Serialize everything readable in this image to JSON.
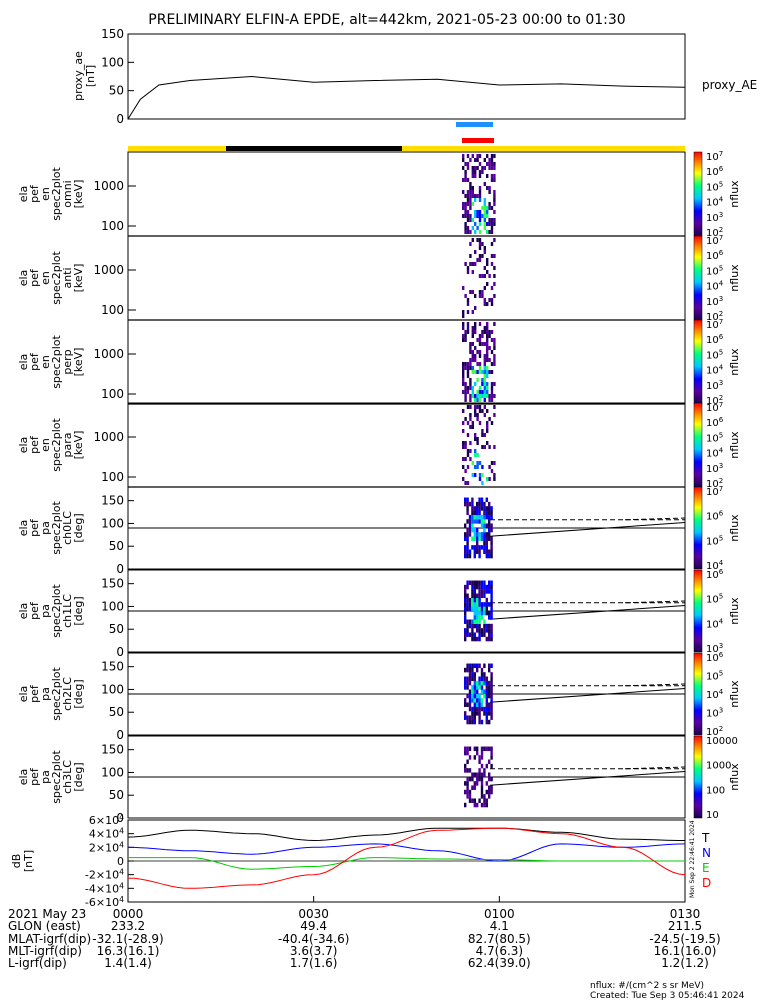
{
  "title": "PRELIMINARY ELFIN-A EPDE, alt=442km, 2021-05-23 00:00 to 01:30",
  "top_panel": {
    "ylabel": "proxy_ae",
    "units": "[nT]",
    "series_name": "proxy_AE",
    "yticks": [
      "150",
      "100",
      "50",
      "0"
    ]
  },
  "spec_panels": [
    {
      "label_lines": [
        "ela",
        "pef",
        "en",
        "spec2plot",
        "omni"
      ],
      "units": "[keV]",
      "yticks": [
        "1000",
        "100"
      ],
      "cb_ticks": [
        "10^7",
        "10^6",
        "10^5",
        "10^4",
        "10^3",
        "10^2"
      ],
      "cb_label": "nflux"
    },
    {
      "label_lines": [
        "ela",
        "pef",
        "en",
        "spec2plot",
        "anti"
      ],
      "units": "[keV]",
      "yticks": [
        "1000",
        "100"
      ],
      "cb_ticks": [
        "10^7",
        "10^6",
        "10^5",
        "10^4",
        "10^3",
        "10^2"
      ],
      "cb_label": "nflux"
    },
    {
      "label_lines": [
        "ela",
        "pef",
        "en",
        "spec2plot",
        "perp"
      ],
      "units": "[keV]",
      "yticks": [
        "1000",
        "100"
      ],
      "cb_ticks": [
        "10^7",
        "10^6",
        "10^5",
        "10^4",
        "10^3",
        "10^2"
      ],
      "cb_label": "nflux"
    },
    {
      "label_lines": [
        "ela",
        "pef",
        "en",
        "spec2plot",
        "para"
      ],
      "units": "[keV]",
      "yticks": [
        "1000",
        "100"
      ],
      "cb_ticks": [
        "10^7",
        "10^6",
        "10^5",
        "10^4",
        "10^3",
        "10^2"
      ],
      "cb_label": "nflux"
    }
  ],
  "pa_panels": [
    {
      "label_lines": [
        "ela",
        "pef",
        "pa",
        "spec2plot",
        "ch0LC"
      ],
      "units": "[deg]",
      "yticks": [
        "150",
        "100",
        "50",
        "0"
      ],
      "cb_ticks": [
        "10^7",
        "10^6",
        "10^5",
        "10^4"
      ],
      "cb_label": "nflux"
    },
    {
      "label_lines": [
        "ela",
        "pef",
        "pa",
        "spec2plot",
        "ch1LC"
      ],
      "units": "[deg]",
      "yticks": [
        "150",
        "100",
        "50",
        "0"
      ],
      "cb_ticks": [
        "10^6",
        "10^5",
        "10^4",
        "10^3"
      ],
      "cb_label": "nflux"
    },
    {
      "label_lines": [
        "ela",
        "pef",
        "pa",
        "spec2plot",
        "ch2LC"
      ],
      "units": "[deg]",
      "yticks": [
        "150",
        "100",
        "50",
        "0"
      ],
      "cb_ticks": [
        "10^6",
        "10^5",
        "10^4",
        "10^3",
        "10^2"
      ],
      "cb_label": "nflux"
    },
    {
      "label_lines": [
        "ela",
        "pef",
        "pa",
        "spec2plot",
        "ch3LC"
      ],
      "units": "[deg]",
      "yticks": [
        "150",
        "100",
        "50",
        "0"
      ],
      "cb_ticks": [
        "10000",
        "1000",
        "100",
        "10"
      ],
      "cb_label": "nflux"
    }
  ],
  "bfield_panel": {
    "ylabel": "dB",
    "units": "[nT]",
    "yticks": [
      "6×10^4",
      "4×10^4",
      "2×10^4",
      "0",
      "-2×10^4",
      "-4×10^4",
      "-6×10^4"
    ],
    "legend": [
      {
        "name": "T",
        "color": "#000000"
      },
      {
        "name": "N",
        "color": "#0000ff"
      },
      {
        "name": "E",
        "color": "#00cc00"
      },
      {
        "name": "D",
        "color": "#ff0000"
      }
    ],
    "side_text": "Mon Sep  2 22:46:41 2024"
  },
  "colors": {
    "sun_bar": "#ffdd00",
    "shadow_bar": "#000000",
    "science_blue": "#1e90ff",
    "science_red": "#ff0000"
  },
  "orbit_table": {
    "row_labels": [
      "2021 May 23",
      "GLON (east)",
      "MLAT-igrf(dip)",
      "MLT-igrf(dip)",
      "L-igrf(dip)"
    ],
    "columns": [
      {
        "time": "0000",
        "values": [
          "233.2",
          "-32.1(-28.9)",
          "16.3(16.1)",
          "1.4(1.4)"
        ]
      },
      {
        "time": "0030",
        "values": [
          "49.4",
          "-40.4(-34.6)",
          "3.6(3.7)",
          "1.7(1.6)"
        ]
      },
      {
        "time": "0100",
        "values": [
          "4.1",
          "82.7(80.5)",
          "4.7(6.3)",
          "62.4(39.0)"
        ]
      },
      {
        "time": "0130",
        "values": [
          "211.5",
          "-24.5(-19.5)",
          "16.1(16.0)",
          "1.2(1.2)"
        ]
      }
    ]
  },
  "footer": {
    "units_note": "nflux: #/(cm^2 s sr MeV)",
    "created": "Created: Tue Sep  3 05:46:41 2024"
  },
  "chart_data": {
    "type": "line",
    "x_range": [
      "00:00",
      "01:30"
    ],
    "proxy_ae": {
      "x_minutes": [
        0,
        2,
        5,
        10,
        20,
        30,
        40,
        50,
        60,
        70,
        80,
        90
      ],
      "values": [
        0,
        35,
        60,
        68,
        75,
        65,
        68,
        70,
        60,
        62,
        58,
        56
      ],
      "ylim": [
        0,
        150
      ]
    },
    "b_field": {
      "x_minutes": [
        0,
        10,
        20,
        30,
        40,
        50,
        60,
        70,
        80,
        90
      ],
      "series": [
        {
          "name": "T",
          "values": [
            35000,
            45000,
            40000,
            30000,
            38000,
            48000,
            48000,
            42000,
            32000,
            30000
          ]
        },
        {
          "name": "N",
          "values": [
            20000,
            15000,
            10000,
            20000,
            25000,
            15000,
            0,
            25000,
            20000,
            25000
          ]
        },
        {
          "name": "E",
          "values": [
            5000,
            5000,
            -12000,
            -8000,
            5000,
            3000,
            2000,
            0,
            0,
            0
          ]
        },
        {
          "name": "D",
          "values": [
            -25000,
            -40000,
            -35000,
            -20000,
            20000,
            45000,
            48000,
            40000,
            20000,
            -20000
          ]
        }
      ],
      "ylim": [
        -60000,
        60000
      ]
    }
  }
}
